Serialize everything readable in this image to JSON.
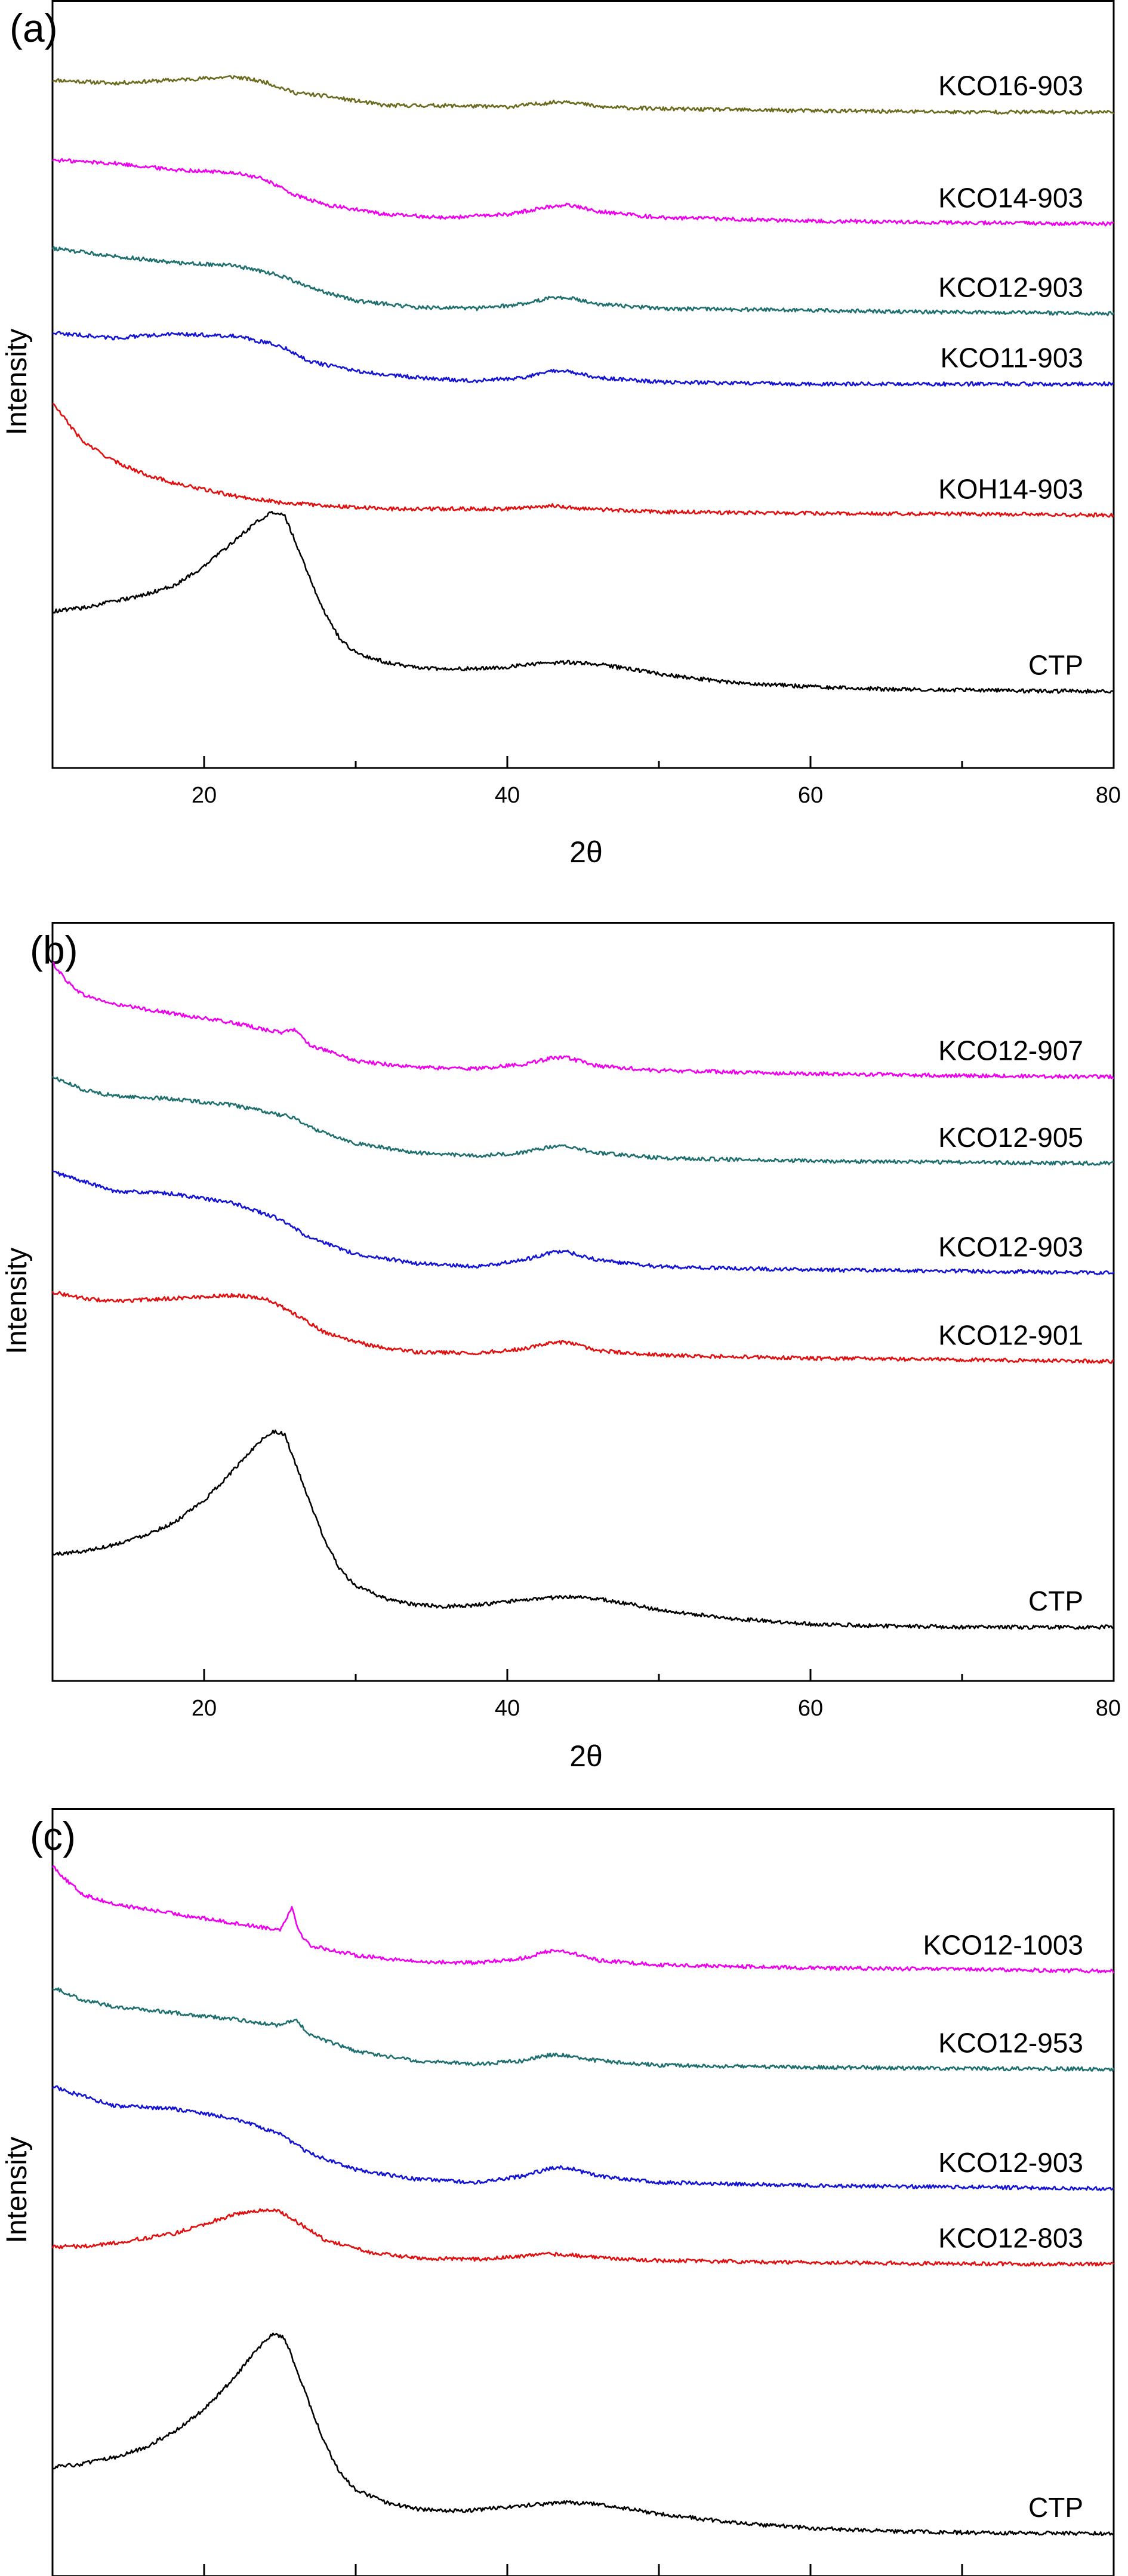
{
  "chart_data": [
    {
      "panel_label": "(a)",
      "type": "line",
      "xlabel": "2θ",
      "ylabel": "Intensity",
      "xlim": [
        10,
        80
      ],
      "xticks": [
        20,
        40,
        60,
        80
      ],
      "xtick_labels": [
        "20",
        "40",
        "60",
        "80"
      ],
      "show_tick_labels": true,
      "grid": false,
      "series": [
        {
          "name": "KCO16-903",
          "color": "#6b6b20",
          "x": [
            10,
            14,
            18,
            22,
            24,
            26,
            28,
            32,
            36,
            40,
            43,
            44,
            46,
            50,
            60,
            70,
            80
          ],
          "y": [
            10.75,
            10.7,
            10.75,
            10.8,
            10.72,
            10.55,
            10.5,
            10.35,
            10.35,
            10.33,
            10.4,
            10.42,
            10.33,
            10.3,
            10.27,
            10.25,
            10.25
          ]
        },
        {
          "name": "KCO14-903",
          "color": "#ee00ee",
          "x": [
            10,
            14,
            18,
            22,
            24,
            26,
            28,
            32,
            36,
            40,
            43,
            44,
            46,
            50,
            60,
            70,
            80
          ],
          "y": [
            9.5,
            9.45,
            9.35,
            9.3,
            9.2,
            8.95,
            8.8,
            8.65,
            8.6,
            8.65,
            8.78,
            8.8,
            8.7,
            8.6,
            8.55,
            8.52,
            8.5
          ]
        },
        {
          "name": "KCO12-903",
          "color": "#1f6f6f",
          "x": [
            10,
            14,
            18,
            22,
            25,
            27,
            30,
            34,
            38,
            41,
            43,
            44,
            46,
            50,
            60,
            70,
            80
          ],
          "y": [
            8.12,
            8.0,
            7.9,
            7.85,
            7.7,
            7.5,
            7.3,
            7.2,
            7.18,
            7.25,
            7.35,
            7.35,
            7.25,
            7.18,
            7.15,
            7.12,
            7.1
          ]
        },
        {
          "name": "KCO11-903",
          "color": "#1414d2",
          "x": [
            10,
            14,
            18,
            22,
            25,
            27,
            30,
            34,
            38,
            41,
            43,
            44,
            46,
            50,
            60,
            70,
            80
          ],
          "y": [
            6.8,
            6.72,
            6.78,
            6.75,
            6.6,
            6.35,
            6.2,
            6.1,
            6.05,
            6.1,
            6.2,
            6.2,
            6.1,
            6.03,
            6.0,
            6.0,
            6.0
          ]
        },
        {
          "name": "KOH14-903",
          "color": "#e01010",
          "x": [
            10,
            11,
            12,
            14,
            16,
            18,
            20,
            22,
            25,
            28,
            32,
            36,
            40,
            43,
            45,
            50,
            60,
            70,
            80
          ],
          "y": [
            5.7,
            5.4,
            5.1,
            4.8,
            4.6,
            4.45,
            4.35,
            4.25,
            4.15,
            4.1,
            4.05,
            4.05,
            4.05,
            4.1,
            4.05,
            4.0,
            3.98,
            3.97,
            3.95
          ]
        },
        {
          "name": "CTP",
          "color": "#000000",
          "x": [
            10,
            12,
            14,
            16,
            18,
            20,
            22,
            23.5,
            24.5,
            25.3,
            26,
            27,
            28,
            29,
            30,
            32,
            34,
            36,
            38,
            40,
            42,
            44,
            46,
            48,
            50,
            55,
            60,
            65,
            70,
            75,
            80
          ],
          "y": [
            2.45,
            2.5,
            2.6,
            2.7,
            2.85,
            3.15,
            3.55,
            3.85,
            4.0,
            3.95,
            3.55,
            2.95,
            2.4,
            2.0,
            1.8,
            1.65,
            1.57,
            1.55,
            1.55,
            1.58,
            1.63,
            1.65,
            1.62,
            1.55,
            1.47,
            1.33,
            1.27,
            1.23,
            1.22,
            1.2,
            1.2
          ]
        }
      ]
    },
    {
      "panel_label": "(b)",
      "type": "line",
      "xlabel": "2θ",
      "ylabel": "Intensity",
      "xlim": [
        10,
        80
      ],
      "xticks": [
        20,
        40,
        60,
        80
      ],
      "xtick_labels": [
        "20",
        "40",
        "60",
        "80"
      ],
      "show_tick_labels": true,
      "grid": false,
      "series": [
        {
          "name": "KCO12-907",
          "color": "#ee00ee",
          "x": [
            10,
            11,
            12,
            14,
            18,
            22,
            25,
            26,
            27,
            30,
            34,
            38,
            41,
            43,
            44,
            46,
            50,
            60,
            70,
            80
          ],
          "y": [
            11.35,
            11.05,
            10.85,
            10.7,
            10.55,
            10.4,
            10.25,
            10.3,
            10.05,
            9.8,
            9.7,
            9.68,
            9.75,
            9.85,
            9.85,
            9.72,
            9.65,
            9.6,
            9.57,
            9.55
          ]
        },
        {
          "name": "KCO12-905",
          "color": "#1f6f6f",
          "x": [
            10,
            12,
            14,
            18,
            22,
            25,
            26,
            27,
            30,
            34,
            38,
            41,
            43,
            44,
            46,
            50,
            60,
            70,
            80
          ],
          "y": [
            9.55,
            9.35,
            9.25,
            9.2,
            9.1,
            8.95,
            8.9,
            8.75,
            8.5,
            8.35,
            8.3,
            8.35,
            8.45,
            8.45,
            8.35,
            8.27,
            8.22,
            8.2,
            8.18
          ]
        },
        {
          "name": "KCO12-903",
          "color": "#1414d2",
          "x": [
            10,
            12,
            14,
            18,
            22,
            25,
            27,
            30,
            34,
            38,
            41,
            43,
            44,
            46,
            50,
            60,
            70,
            80
          ],
          "y": [
            8.05,
            7.9,
            7.75,
            7.7,
            7.55,
            7.3,
            7.0,
            6.75,
            6.6,
            6.55,
            6.65,
            6.78,
            6.78,
            6.65,
            6.55,
            6.5,
            6.48,
            6.45
          ]
        },
        {
          "name": "KCO12-901",
          "color": "#e01010",
          "x": [
            10,
            12,
            14,
            18,
            22,
            24,
            26,
            28,
            31,
            34,
            38,
            41,
            43,
            44,
            46,
            50,
            60,
            70,
            80
          ],
          "y": [
            6.15,
            6.05,
            6.0,
            6.05,
            6.1,
            6.05,
            5.8,
            5.5,
            5.3,
            5.2,
            5.18,
            5.25,
            5.35,
            5.35,
            5.22,
            5.15,
            5.1,
            5.08,
            5.05
          ]
        },
        {
          "name": "CTP",
          "color": "#000000",
          "x": [
            10,
            12,
            14,
            16,
            18,
            20,
            22,
            23.5,
            24.5,
            25.3,
            26,
            27,
            28,
            29,
            30,
            32,
            34,
            36,
            38,
            40,
            42,
            44,
            46,
            48,
            50,
            55,
            60,
            65,
            70,
            75,
            80
          ],
          "y": [
            2.0,
            2.05,
            2.15,
            2.3,
            2.5,
            2.85,
            3.35,
            3.75,
            3.95,
            3.9,
            3.45,
            2.8,
            2.2,
            1.75,
            1.5,
            1.3,
            1.2,
            1.18,
            1.2,
            1.25,
            1.3,
            1.33,
            1.3,
            1.22,
            1.12,
            0.98,
            0.9,
            0.87,
            0.85,
            0.85,
            0.85
          ]
        }
      ]
    },
    {
      "panel_label": "(c)",
      "type": "line",
      "xlabel": "",
      "ylabel": "Intensity",
      "xlim": [
        10,
        80
      ],
      "xticks": [
        20,
        30,
        40,
        50,
        60,
        70,
        80
      ],
      "xtick_labels": [],
      "show_tick_labels": false,
      "grid": false,
      "series": [
        {
          "name": "KCO12-1003",
          "color": "#ee00ee",
          "x": [
            10,
            11,
            12,
            14,
            18,
            22,
            25,
            25.8,
            26.3,
            27,
            30,
            34,
            38,
            41,
            43,
            44,
            46,
            50,
            60,
            70,
            80
          ],
          "y": [
            11.1,
            10.85,
            10.65,
            10.5,
            10.35,
            10.2,
            10.1,
            10.45,
            10.05,
            9.85,
            9.7,
            9.6,
            9.58,
            9.65,
            9.78,
            9.75,
            9.62,
            9.55,
            9.5,
            9.48,
            9.45
          ]
        },
        {
          "name": "KCO12-953",
          "color": "#1f6f6f",
          "x": [
            10,
            12,
            14,
            18,
            22,
            25,
            26,
            27,
            30,
            34,
            38,
            41,
            43,
            44,
            46,
            50,
            60,
            70,
            80
          ],
          "y": [
            9.2,
            9.0,
            8.9,
            8.8,
            8.7,
            8.6,
            8.7,
            8.45,
            8.2,
            8.05,
            8.0,
            8.05,
            8.15,
            8.13,
            8.05,
            7.98,
            7.95,
            7.93,
            7.92
          ]
        },
        {
          "name": "KCO12-903",
          "color": "#1414d2",
          "x": [
            10,
            12,
            14,
            18,
            22,
            25,
            27,
            30,
            34,
            38,
            41,
            43,
            44,
            46,
            50,
            60,
            70,
            80
          ],
          "y": [
            7.65,
            7.5,
            7.35,
            7.3,
            7.15,
            6.9,
            6.6,
            6.35,
            6.2,
            6.15,
            6.25,
            6.38,
            6.38,
            6.25,
            6.15,
            6.1,
            6.08,
            6.05
          ]
        },
        {
          "name": "KCO12-803",
          "color": "#e01010",
          "x": [
            10,
            12,
            14,
            18,
            20,
            22,
            24,
            25,
            26,
            28,
            31,
            34,
            38,
            41,
            43,
            44,
            46,
            50,
            60,
            70,
            80
          ],
          "y": [
            5.15,
            5.15,
            5.2,
            5.35,
            5.5,
            5.65,
            5.72,
            5.7,
            5.55,
            5.25,
            5.05,
            4.97,
            4.95,
            5.0,
            5.03,
            5.02,
            4.97,
            4.93,
            4.9,
            4.88,
            4.87
          ]
        },
        {
          "name": "CTP",
          "color": "#000000",
          "x": [
            10,
            12,
            14,
            16,
            18,
            20,
            22,
            23.5,
            24.5,
            25.3,
            26,
            27,
            28,
            29,
            30,
            32,
            34,
            36,
            38,
            40,
            42,
            44,
            46,
            48,
            50,
            55,
            60,
            65,
            70,
            75,
            80
          ],
          "y": [
            1.7,
            1.75,
            1.85,
            2.0,
            2.25,
            2.6,
            3.1,
            3.55,
            3.78,
            3.72,
            3.3,
            2.65,
            2.05,
            1.6,
            1.35,
            1.15,
            1.05,
            1.02,
            1.03,
            1.08,
            1.12,
            1.15,
            1.12,
            1.05,
            0.97,
            0.83,
            0.75,
            0.7,
            0.68,
            0.67,
            0.66
          ]
        }
      ]
    }
  ]
}
